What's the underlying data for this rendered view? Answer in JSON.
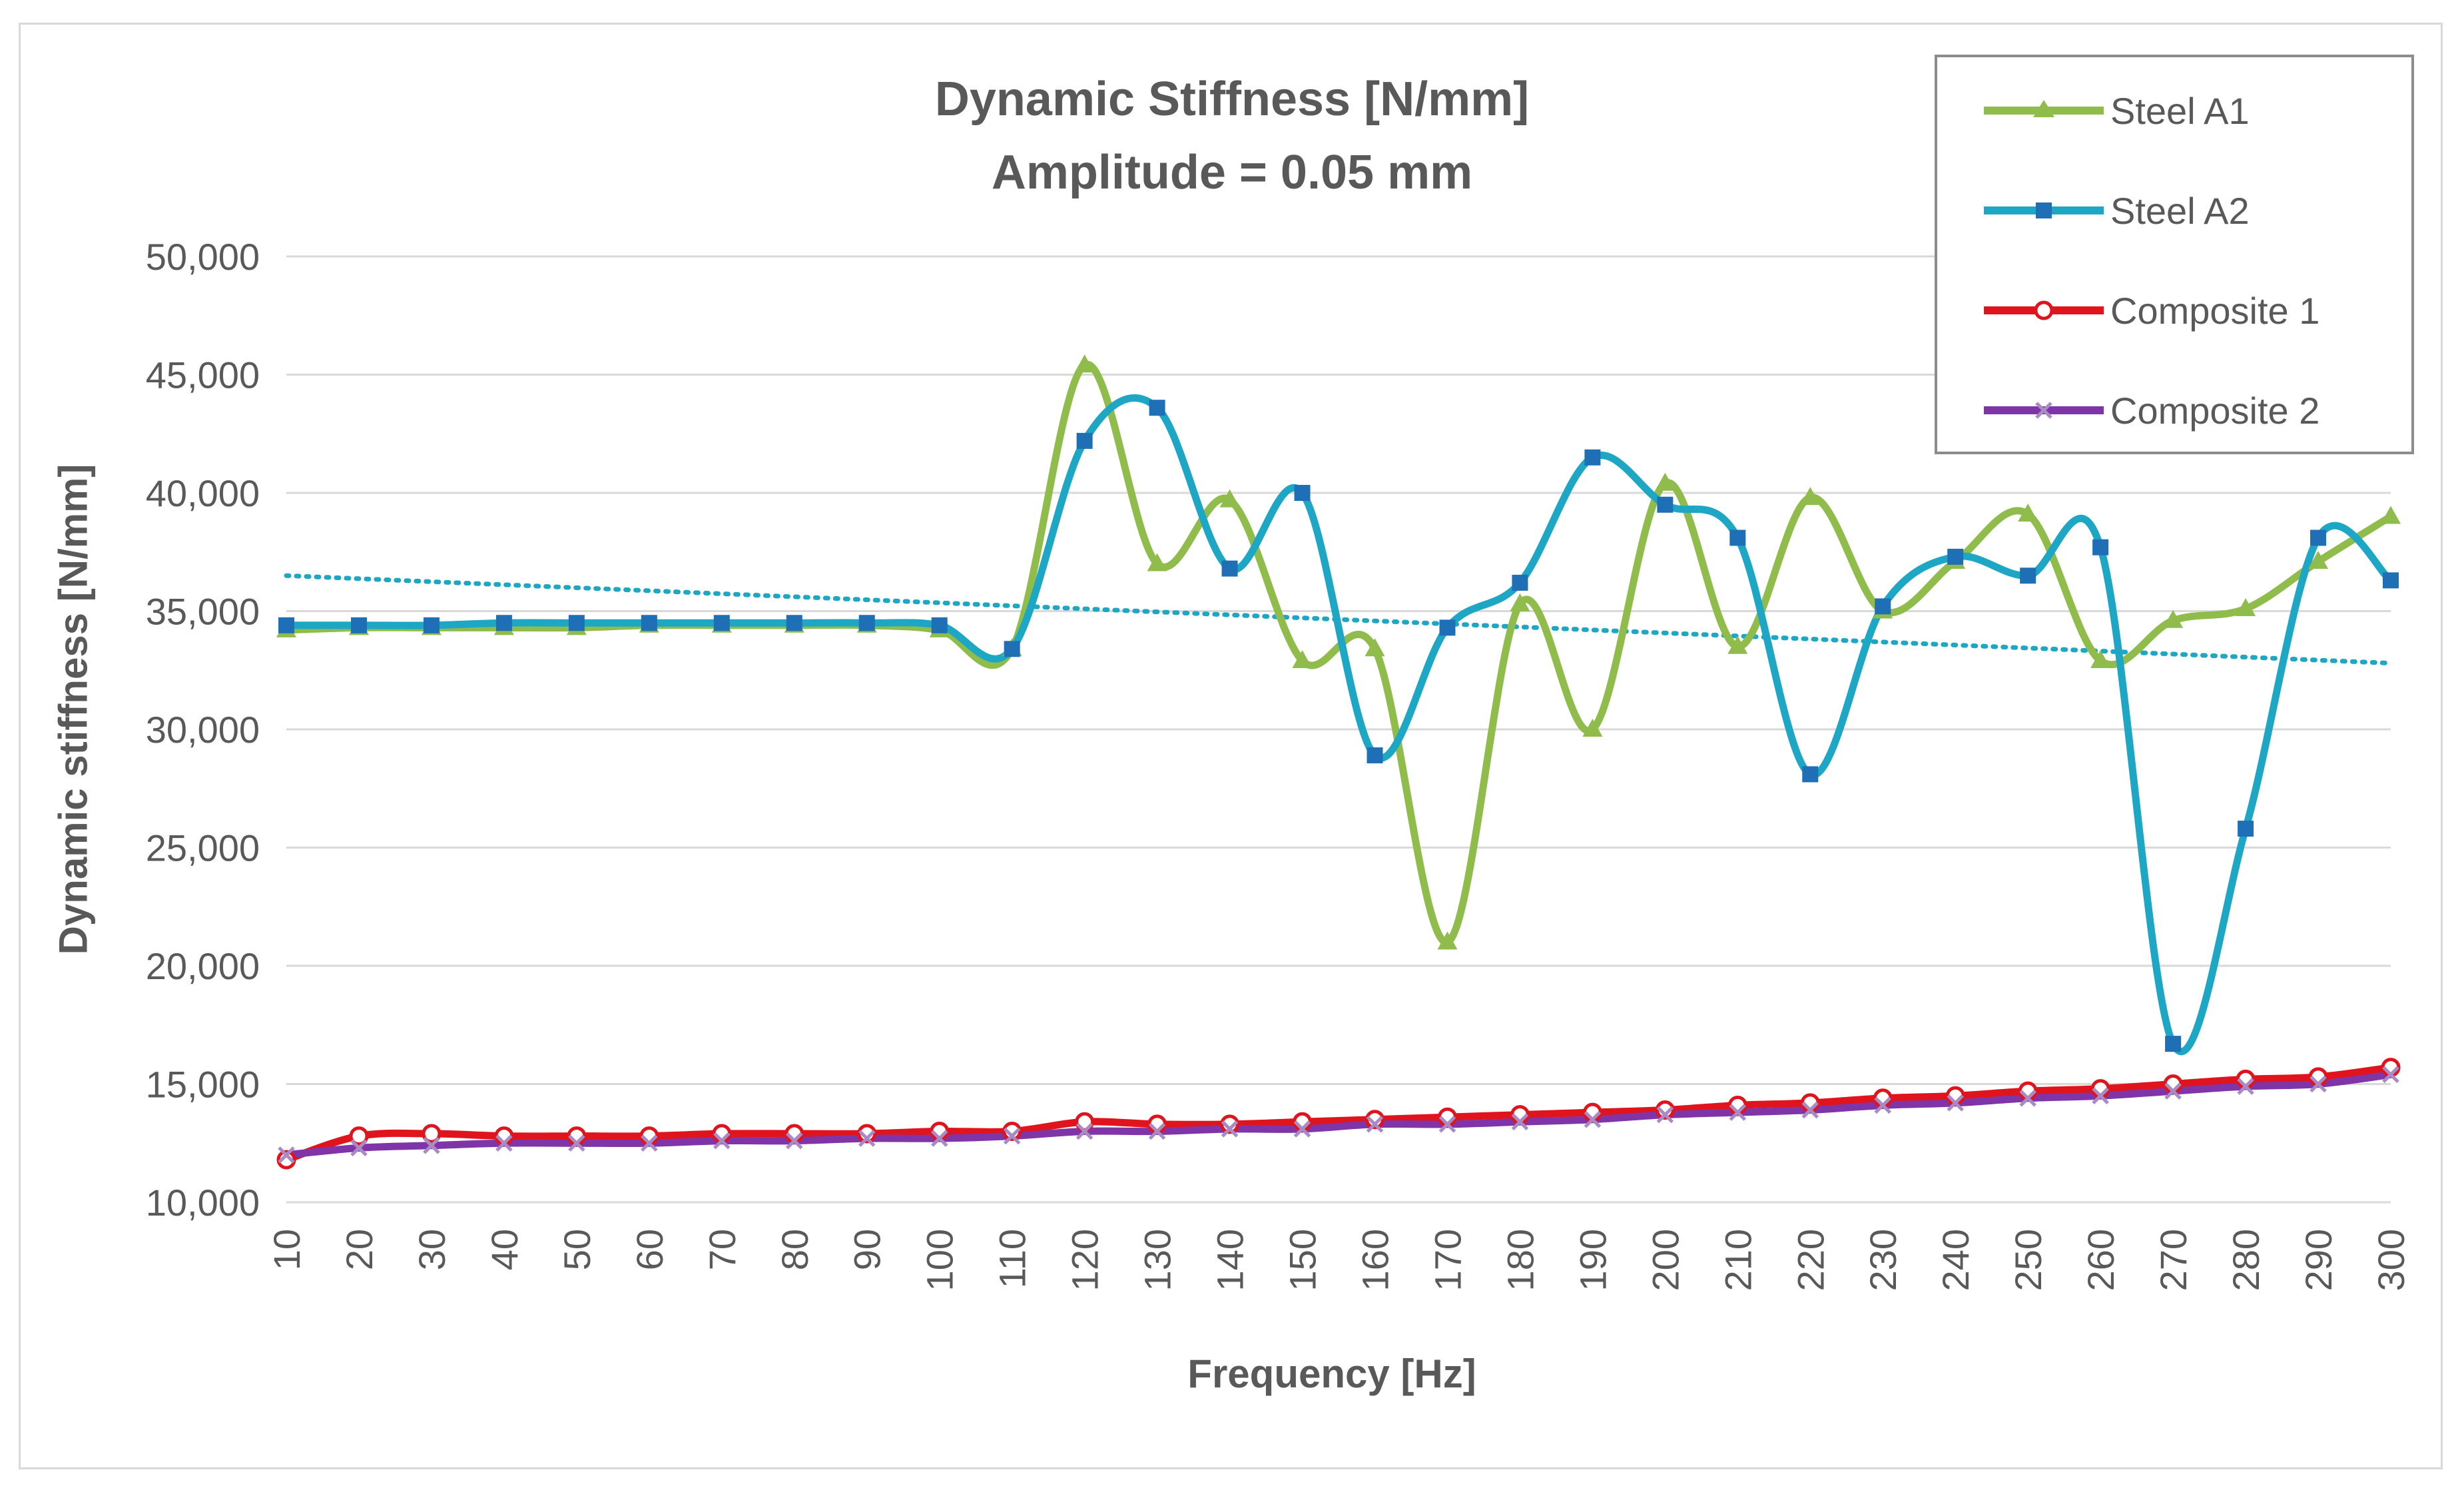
{
  "chart_data": {
    "type": "line",
    "title": "Dynamic Stiffness [N/mm]",
    "subtitle": "Amplitude = 0.05 mm",
    "xlabel": "Frequency [Hz]",
    "ylabel": "Dynamic stiffness [N/mm]",
    "ylim": [
      10000,
      50000
    ],
    "yticks": [
      "10,000",
      "15,000",
      "20,000",
      "25,000",
      "30,000",
      "35,000",
      "40,000",
      "45,000",
      "50,000"
    ],
    "ytick_values": [
      10000,
      15000,
      20000,
      25000,
      30000,
      35000,
      40000,
      45000,
      50000
    ],
    "grid": true,
    "legend_position": "top-right",
    "x": [
      10,
      20,
      30,
      40,
      50,
      60,
      70,
      80,
      90,
      100,
      110,
      120,
      130,
      140,
      150,
      160,
      170,
      180,
      190,
      200,
      210,
      220,
      230,
      240,
      250,
      260,
      270,
      280,
      290,
      300
    ],
    "series": [
      {
        "name": "Steel A1",
        "color": "#8fbc4a",
        "marker": "triangle",
        "values": [
          34200,
          34300,
          34300,
          34300,
          34300,
          34400,
          34400,
          34400,
          34400,
          34200,
          33400,
          45400,
          37000,
          39700,
          32900,
          33400,
          21000,
          35300,
          30000,
          40400,
          33500,
          39800,
          35000,
          37100,
          39100,
          32900,
          34600,
          35100,
          37100,
          39000
        ]
      },
      {
        "name": "Steel A2",
        "color": "#1ea7c5",
        "marker": "square",
        "values": [
          34400,
          34400,
          34400,
          34500,
          34500,
          34500,
          34500,
          34500,
          34500,
          34400,
          33400,
          42200,
          43600,
          36800,
          40000,
          28900,
          34300,
          36200,
          41500,
          39500,
          38100,
          28100,
          35200,
          37300,
          36500,
          37700,
          16700,
          25800,
          38100,
          36300
        ]
      },
      {
        "name": "Composite 1",
        "color": "#e0141c",
        "marker": "circle",
        "values": [
          11800,
          12800,
          12900,
          12800,
          12800,
          12800,
          12900,
          12900,
          12900,
          13000,
          13000,
          13400,
          13300,
          13300,
          13400,
          13500,
          13600,
          13700,
          13800,
          13900,
          14100,
          14200,
          14400,
          14500,
          14700,
          14800,
          15000,
          15200,
          15300,
          15700
        ]
      },
      {
        "name": "Composite 2",
        "color": "#7f35a8",
        "marker": "x",
        "values": [
          12000,
          12300,
          12400,
          12500,
          12500,
          12500,
          12600,
          12600,
          12700,
          12700,
          12800,
          13000,
          13000,
          13100,
          13100,
          13300,
          13300,
          13400,
          13500,
          13700,
          13800,
          13900,
          14100,
          14200,
          14400,
          14500,
          14700,
          14900,
          15000,
          15400
        ]
      }
    ],
    "trendline": {
      "series": "Steel A2",
      "style": "dotted",
      "color": "#1ea7c5",
      "start": 36500,
      "end": 32800
    }
  }
}
